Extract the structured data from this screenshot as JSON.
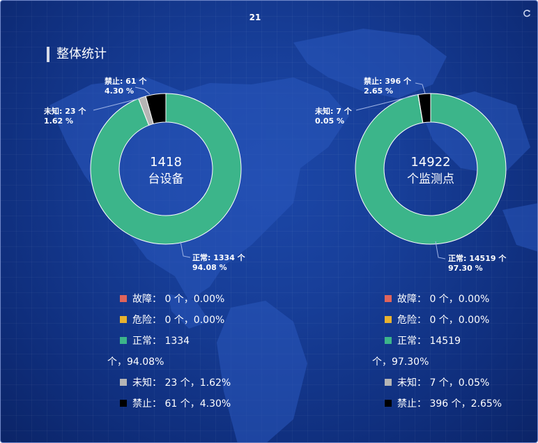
{
  "header": {
    "number": "21",
    "refresh_icon": "refresh-icon"
  },
  "section": {
    "title": "整体统计"
  },
  "colors": {
    "fault": "#e0645b",
    "danger": "#e8b22f",
    "normal": "#3cb58a",
    "unknown": "#b5b5b5",
    "banned": "#000000"
  },
  "chart_data": [
    {
      "type": "pie",
      "center_value": "1418",
      "center_label": "台设备",
      "slices": [
        {
          "name": "故障",
          "value": 0,
          "percent": 0.0,
          "color": "#e0645b"
        },
        {
          "name": "危险",
          "value": 0,
          "percent": 0.0,
          "color": "#e8b22f"
        },
        {
          "name": "正常",
          "value": 1334,
          "percent": 94.08,
          "color": "#3cb58a"
        },
        {
          "name": "未知",
          "value": 23,
          "percent": 1.62,
          "color": "#b5b5b5"
        },
        {
          "name": "禁止",
          "value": 61,
          "percent": 4.3,
          "color": "#000000"
        }
      ],
      "annotations": {
        "normal": {
          "line1": "正常: 1334 个",
          "line2": "94.08 %"
        },
        "unknown": {
          "line1": "未知: 23 个",
          "line2": "1.62 %"
        },
        "banned": {
          "line1": "禁止: 61 个",
          "line2": "4.30 %"
        }
      },
      "legend": [
        {
          "label": "故障：",
          "value": "0 个，0.00%",
          "color": "#e0645b"
        },
        {
          "label": "危险：",
          "value": "0 个，0.00%",
          "color": "#e8b22f"
        },
        {
          "label": "正常：",
          "value": "1334",
          "cont": "个，94.08%",
          "color": "#3cb58a"
        },
        {
          "label": "未知：",
          "value": "23 个，1.62%",
          "color": "#b5b5b5"
        },
        {
          "label": "禁止：",
          "value": "61 个，4.30%",
          "color": "#000000"
        }
      ]
    },
    {
      "type": "pie",
      "center_value": "14922",
      "center_label": "个监测点",
      "slices": [
        {
          "name": "故障",
          "value": 0,
          "percent": 0.0,
          "color": "#e0645b"
        },
        {
          "name": "危险",
          "value": 0,
          "percent": 0.0,
          "color": "#e8b22f"
        },
        {
          "name": "正常",
          "value": 14519,
          "percent": 97.3,
          "color": "#3cb58a"
        },
        {
          "name": "未知",
          "value": 7,
          "percent": 0.05,
          "color": "#b5b5b5"
        },
        {
          "name": "禁止",
          "value": 396,
          "percent": 2.65,
          "color": "#000000"
        }
      ],
      "annotations": {
        "normal": {
          "line1": "正常: 14519 个",
          "line2": "97.30 %"
        },
        "unknown": {
          "line1": "未知: 7 个",
          "line2": "0.05 %"
        },
        "banned": {
          "line1": "禁止: 396 个",
          "line2": "2.65 %"
        }
      },
      "legend": [
        {
          "label": "故障：",
          "value": "0 个，0.00%",
          "color": "#e0645b"
        },
        {
          "label": "危险：",
          "value": "0 个，0.00%",
          "color": "#e8b22f"
        },
        {
          "label": "正常：",
          "value": "14519",
          "cont": "个，97.30%",
          "color": "#3cb58a"
        },
        {
          "label": "未知：",
          "value": "7 个，0.05%",
          "color": "#b5b5b5"
        },
        {
          "label": "禁止：",
          "value": "396 个，2.65%",
          "color": "#000000"
        }
      ]
    }
  ]
}
